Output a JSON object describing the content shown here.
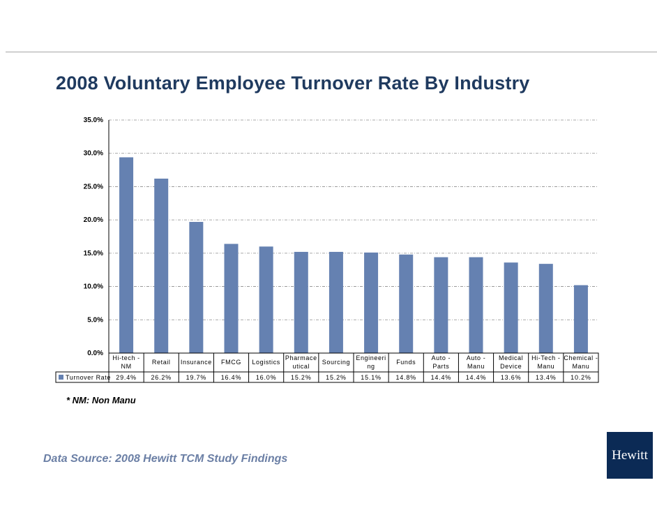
{
  "title": "2008 Voluntary Employee Turnover Rate By Industry",
  "footnote": "* NM: Non Manu",
  "source": "Data Source: 2008 Hewitt TCM Study Findings",
  "logo_text": "Hewitt",
  "colors": {
    "bar": "#6581b1",
    "title": "#1f3a5f",
    "source": "#6b7fa5",
    "logo_bg": "#0b2a55"
  },
  "chart_data": {
    "type": "bar",
    "title": "2008 Voluntary Employee Turnover Rate By Industry",
    "categories": [
      [
        "Hi-tech -",
        "NM"
      ],
      [
        "Retail"
      ],
      [
        "Insurance"
      ],
      [
        "FMCG"
      ],
      [
        "Logistics"
      ],
      [
        "Pharmace",
        "utical"
      ],
      [
        "Sourcing"
      ],
      [
        "Engineeri",
        "ng"
      ],
      [
        "Funds"
      ],
      [
        "Auto -",
        "Parts"
      ],
      [
        "Auto -",
        "Manu"
      ],
      [
        "Medical",
        "Device"
      ],
      [
        "Hi-Tech -",
        "Manu"
      ],
      [
        "Chemical -",
        "Manu"
      ]
    ],
    "series": [
      {
        "name": "Turnover Rate",
        "values": [
          29.4,
          26.2,
          19.7,
          16.4,
          16.0,
          15.2,
          15.2,
          15.1,
          14.8,
          14.4,
          14.4,
          13.6,
          13.4,
          10.2
        ],
        "labels": [
          "29.4%",
          "26.2%",
          "19.7%",
          "16.4%",
          "16.0%",
          "15.2%",
          "15.2%",
          "15.1%",
          "14.8%",
          "14.4%",
          "14.4%",
          "13.6%",
          "13.4%",
          "10.2%"
        ]
      }
    ],
    "yticks": [
      "0.0%",
      "5.0%",
      "10.0%",
      "15.0%",
      "20.0%",
      "25.0%",
      "30.0%",
      "35.0%"
    ],
    "ylim": [
      0,
      35
    ],
    "grid": true,
    "legend": "data-table"
  }
}
